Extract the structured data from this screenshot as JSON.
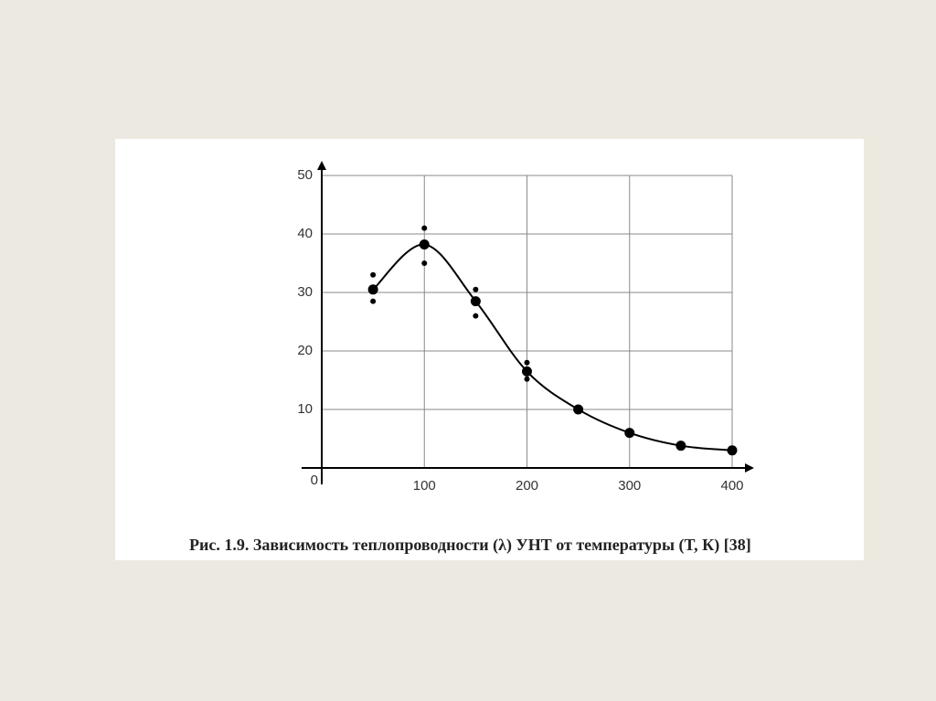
{
  "chart_data": {
    "type": "scatter",
    "caption": "Рис. 1.9. Зависимость теплопроводности (λ) УНТ от температуры (T, К) [38]",
    "xlim": [
      0,
      400
    ],
    "ylim": [
      0,
      50
    ],
    "xticks": [
      0,
      100,
      200,
      300,
      400
    ],
    "yticks": [
      10,
      20,
      30,
      40,
      50
    ],
    "grid": true,
    "series": [
      {
        "color": "#000000",
        "marker": "large",
        "line": true,
        "x": [
          50,
          100,
          150,
          200,
          250,
          300,
          350,
          400
        ],
        "values": [
          30.5,
          38.2,
          28.5,
          16.5,
          10,
          6,
          3.8,
          3
        ]
      },
      {
        "color": "#000000",
        "marker": "small",
        "line": false,
        "x": [
          50,
          50,
          100,
          100,
          150,
          150,
          200,
          200
        ],
        "values": [
          33,
          28.5,
          41,
          35,
          30.5,
          26,
          18,
          15.2
        ]
      }
    ]
  }
}
